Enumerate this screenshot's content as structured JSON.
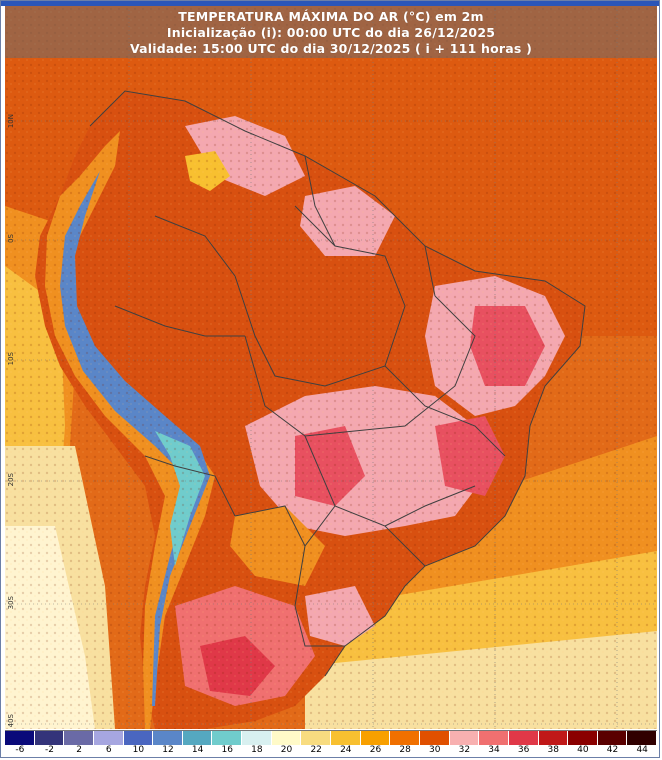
{
  "title": {
    "line1": "TEMPERATURA MÁXIMA DO AR (°C) em 2m",
    "line2": "Inicialização (i): 00:00 UTC do dia 26/12/2025",
    "line3": "Validade: 15:00 UTC do dia 30/12/2025 ( i + 111 horas )"
  },
  "latitude_labels": [
    "10N",
    "0S",
    "10S",
    "20S",
    "30S",
    "40S"
  ],
  "legend": {
    "ticks": [
      "-6",
      "-2",
      "2",
      "6",
      "10",
      "12",
      "14",
      "16",
      "18",
      "20",
      "22",
      "24",
      "26",
      "28",
      "30",
      "32",
      "34",
      "36",
      "38",
      "40",
      "42",
      "44"
    ],
    "colors": [
      "#0a0a7a",
      "#34347a",
      "#6a6aa6",
      "#a6a6e0",
      "#4a66c0",
      "#5a86c8",
      "#55a8c0",
      "#70cccc",
      "#d8f0f0",
      "#fffac8",
      "#f8dc80",
      "#f8c030",
      "#f8a000",
      "#f07000",
      "#e05000",
      "#f8b0b0",
      "#f07070",
      "#e03848",
      "#c01818",
      "#8a0000",
      "#5a0000",
      "#300000"
    ]
  },
  "map_colors": {
    "ocean_hot": "#e06010",
    "ocean_warm": "#f09020",
    "ocean_mild": "#f8c040",
    "ocean_cool": "#f8e0a0",
    "land_hot": "#d85010",
    "land_pink": "#f4a8b0",
    "land_red": "#e85060",
    "andes_blue": "#5070c0",
    "andes_teal": "#60b0c0",
    "border": "#404040"
  }
}
